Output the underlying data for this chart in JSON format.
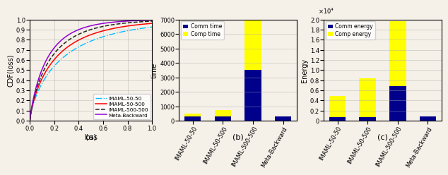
{
  "cdf_xlim": [
    0,
    1
  ],
  "cdf_ylim": [
    0,
    1
  ],
  "cdf_xlabel": "loss",
  "cdf_ylabel": "CDF(loss)",
  "cdf_label_a": "(a)",
  "legend_labels": [
    "IMAML-50-50",
    "IMAML-50-500",
    "IMAML-500-500",
    "Meta-Backward"
  ],
  "bar_categories": [
    "IMAML-50-50",
    "IMAML-50-500",
    "IMAML-500-500",
    "Meta-Backward"
  ],
  "time_comm": [
    320,
    310,
    3500,
    305
  ],
  "time_comp": [
    180,
    420,
    3450,
    0
  ],
  "time_ylim": [
    0,
    7000
  ],
  "time_ylabel": "time",
  "time_label": "(b)",
  "energy_comm": [
    700,
    700,
    6800,
    900
  ],
  "energy_comp": [
    4200,
    7700,
    12800,
    0
  ],
  "energy_ylim": [
    0,
    20000
  ],
  "energy_ylabel": "Energy",
  "energy_label": "(c)",
  "comm_color": "#00008B",
  "comp_color": "#FFFF00",
  "bg_color": "#f5f0e8"
}
